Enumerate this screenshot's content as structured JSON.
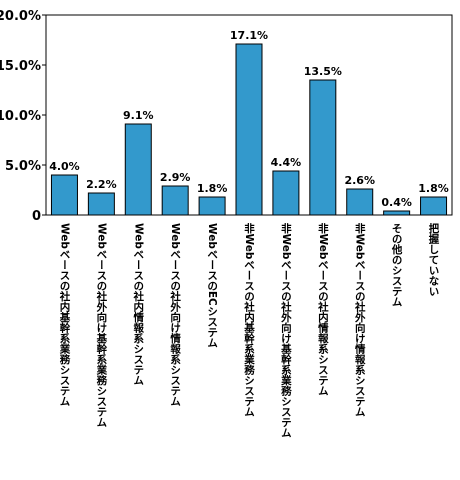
{
  "chart_data": {
    "type": "bar",
    "categories": [
      "Webベースの社内基幹系業務システム",
      "Webベースの社外向け基幹系業務システム",
      "Webベースの社内情報系システム",
      "Webベースの社外向け情報系システム",
      "WebベースのECシステム",
      "非Webベースの社内基幹系業務システム",
      "非Webベースの社外向け基幹系業務システム",
      "非Webベースの社内情報系システム",
      "非Webベースの社外向け情報系システム",
      "その他のシステム",
      "把握していない"
    ],
    "values": [
      4.0,
      2.2,
      9.1,
      2.9,
      1.8,
      17.1,
      4.4,
      13.5,
      2.6,
      0.4,
      1.8
    ],
    "data_labels": [
      "4.0%",
      "2.2%",
      "9.1%",
      "2.9%",
      "1.8%",
      "17.1%",
      "4.4%",
      "13.5%",
      "2.6%",
      "0.4%",
      "1.8%"
    ],
    "yticks": [
      0,
      5,
      10,
      15,
      20
    ],
    "ytick_labels": [
      "0",
      "5.0%",
      "10.0%",
      "15.0%",
      "20.0%"
    ],
    "ylim": [
      0,
      20
    ],
    "title": "",
    "xlabel": "",
    "ylabel": "",
    "bar_color": "#3399cc",
    "grid": false,
    "legend": "none"
  }
}
